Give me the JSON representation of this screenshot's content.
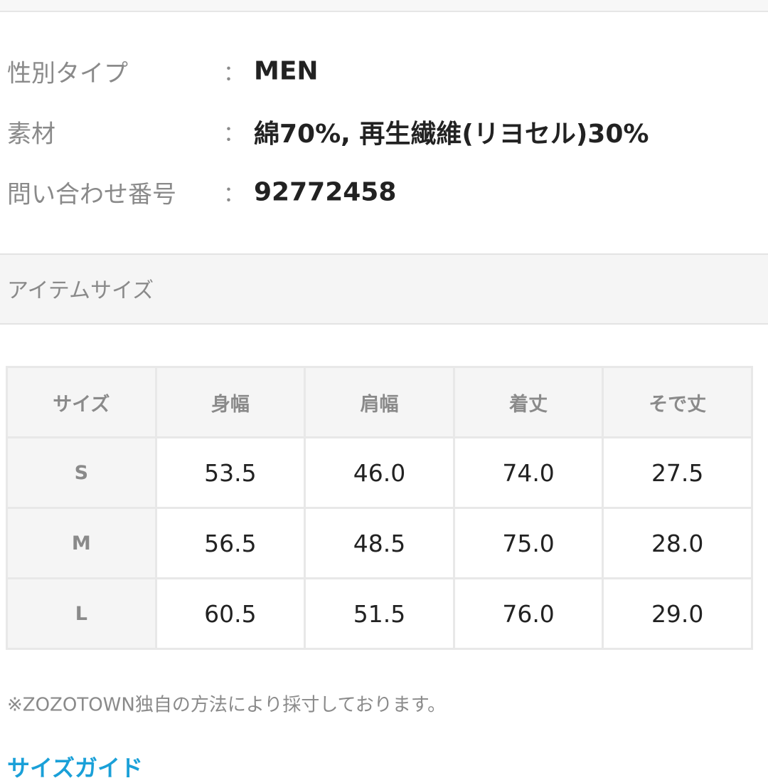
{
  "specs": [
    {
      "label": "性別タイプ",
      "separator": "：",
      "value": "MEN"
    },
    {
      "label": "素材",
      "separator": "：",
      "value": "綿70%, 再生繊維(リヨセル)30%"
    },
    {
      "label": "問い合わせ番号",
      "separator": "：",
      "value": "92772458"
    }
  ],
  "section_title": "アイテムサイズ",
  "size_table": {
    "header": [
      "サイズ",
      "身幅",
      "肩幅",
      "着丈",
      "そで丈"
    ],
    "rows": [
      [
        "S",
        "53.5",
        "46.0",
        "74.0",
        "27.5"
      ],
      [
        "M",
        "56.5",
        "48.5",
        "75.0",
        "28.0"
      ],
      [
        "L",
        "60.5",
        "51.5",
        "76.0",
        "29.0"
      ]
    ]
  },
  "note": "※ZOZOTOWN独自の方法により採寸しております。",
  "link": "サイズガイド"
}
